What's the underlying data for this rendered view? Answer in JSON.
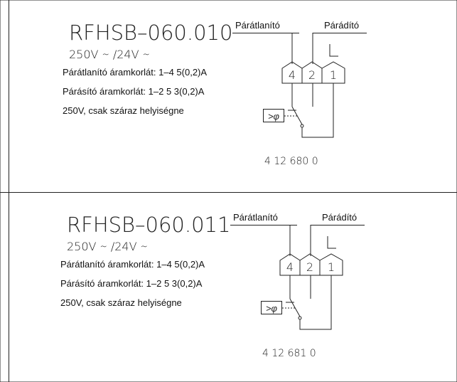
{
  "panels": [
    {
      "model": "RFHSB–060.010",
      "voltage": "250V ∼ /24V ∼",
      "lines": [
        "Párátlanító áramkorlát: 1–4 5(0,2)A",
        "Párásító áramkorlát: 1–2 5 3(0,2)A",
        "250V, csak száraz helyiségne"
      ],
      "label_left": "Párátlanító",
      "label_right": "Párádító",
      "terminals": [
        "4",
        "2",
        "1"
      ],
      "phase": "L",
      "sensor": ">φ",
      "code": "4  12  680  0"
    },
    {
      "model": "RFHSB–060.011",
      "voltage": "250V ∼ /24V ∼",
      "lines": [
        "Párátlanító áramkorlát: 1–4 5(0,2)A",
        "Párásító áramkorlát: 1–2 5 3(0,2)A",
        "250V, csak száraz helyiségne"
      ],
      "label_left": "Párátlanító",
      "label_right": "Párádító",
      "terminals": [
        "4",
        "2",
        "1"
      ],
      "phase": "L",
      "sensor": ">φ",
      "code": "4  12  681  0"
    }
  ]
}
